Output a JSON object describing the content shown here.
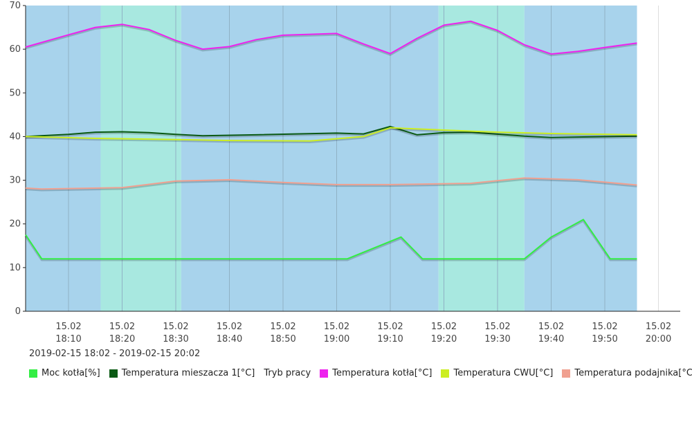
{
  "chart_data": {
    "type": "line",
    "date_range": "2019-02-15 18:02 - 2019-02-15 20:02",
    "ylim": [
      0,
      70
    ],
    "y_ticks": [
      0,
      10,
      20,
      30,
      40,
      50,
      60,
      70
    ],
    "x_range": [
      "18:02",
      "20:02"
    ],
    "x_ticks": [
      {
        "date": "15.02",
        "time": "18:10"
      },
      {
        "date": "15.02",
        "time": "18:20"
      },
      {
        "date": "15.02",
        "time": "18:30"
      },
      {
        "date": "15.02",
        "time": "18:40"
      },
      {
        "date": "15.02",
        "time": "18:50"
      },
      {
        "date": "15.02",
        "time": "19:00"
      },
      {
        "date": "15.02",
        "time": "19:10"
      },
      {
        "date": "15.02",
        "time": "19:20"
      },
      {
        "date": "15.02",
        "time": "19:30"
      },
      {
        "date": "15.02",
        "time": "19:40"
      },
      {
        "date": "15.02",
        "time": "19:50"
      },
      {
        "date": "15.02",
        "time": "20:00"
      }
    ],
    "work_mode_bands": [
      {
        "start": "18:02",
        "end": "18:16",
        "color": "#a8d3ec"
      },
      {
        "start": "18:16",
        "end": "18:31",
        "color": "#a8e8e0"
      },
      {
        "start": "18:31",
        "end": "19:19",
        "color": "#a8d3ec"
      },
      {
        "start": "19:19",
        "end": "19:35",
        "color": "#a8e8e0"
      },
      {
        "start": "19:35",
        "end": "19:56",
        "color": "#a8d3ec"
      }
    ],
    "series": [
      {
        "name": "Moc kotła[%]",
        "color": "#33ee44",
        "points": [
          [
            "18:02",
            17.5
          ],
          [
            "18:05",
            12
          ],
          [
            "19:02",
            12
          ],
          [
            "19:12",
            17
          ],
          [
            "19:16",
            12
          ],
          [
            "19:35",
            12
          ],
          [
            "19:40",
            17
          ],
          [
            "19:46",
            21
          ],
          [
            "19:51",
            12
          ],
          [
            "19:56",
            12
          ]
        ]
      },
      {
        "name": "Temperatura mieszacza 1[°C]",
        "color": "#0b5a14",
        "points": [
          [
            "18:02",
            40
          ],
          [
            "18:10",
            40.5
          ],
          [
            "18:15",
            41
          ],
          [
            "18:20",
            41.1
          ],
          [
            "18:25",
            40.9
          ],
          [
            "18:30",
            40.5
          ],
          [
            "18:35",
            40.2
          ],
          [
            "18:45",
            40.4
          ],
          [
            "19:00",
            40.8
          ],
          [
            "19:05",
            40.6
          ],
          [
            "19:10",
            42.3
          ],
          [
            "19:15",
            40.4
          ],
          [
            "19:20",
            40.9
          ],
          [
            "19:25",
            41
          ],
          [
            "19:35",
            40.1
          ],
          [
            "19:40",
            39.8
          ],
          [
            "19:56",
            40.1
          ]
        ]
      },
      {
        "name": "Tryb pracy",
        "color": "",
        "points": []
      },
      {
        "name": "Temperatura kotła[°C]",
        "color": "#ee22ee",
        "points": [
          [
            "18:02",
            60.5
          ],
          [
            "18:10",
            63.3
          ],
          [
            "18:15",
            65
          ],
          [
            "18:20",
            65.7
          ],
          [
            "18:25",
            64.5
          ],
          [
            "18:30",
            62
          ],
          [
            "18:35",
            60
          ],
          [
            "18:40",
            60.6
          ],
          [
            "18:45",
            62.2
          ],
          [
            "18:50",
            63.2
          ],
          [
            "19:00",
            63.6
          ],
          [
            "19:05",
            61.2
          ],
          [
            "19:10",
            59
          ],
          [
            "19:15",
            62.5
          ],
          [
            "19:20",
            65.5
          ],
          [
            "19:25",
            66.4
          ],
          [
            "19:30",
            64.3
          ],
          [
            "19:35",
            61
          ],
          [
            "19:40",
            58.9
          ],
          [
            "19:45",
            59.5
          ],
          [
            "19:50",
            60.4
          ],
          [
            "19:56",
            61.4
          ]
        ]
      },
      {
        "name": "Temperatura CWU[°C]",
        "color": "#ccee22",
        "points": [
          [
            "18:02",
            40
          ],
          [
            "18:15",
            39.6
          ],
          [
            "18:30",
            39.3
          ],
          [
            "18:40",
            39.1
          ],
          [
            "18:55",
            39
          ],
          [
            "19:05",
            40
          ],
          [
            "19:10",
            42
          ],
          [
            "19:20",
            41.5
          ],
          [
            "19:30",
            41
          ],
          [
            "19:40",
            40.7
          ],
          [
            "19:56",
            40.4
          ]
        ]
      },
      {
        "name": "Temperatura podajnika[°C]",
        "color": "#f0a090",
        "points": [
          [
            "18:02",
            28.2
          ],
          [
            "18:05",
            28
          ],
          [
            "18:20",
            28.3
          ],
          [
            "18:30",
            29.8
          ],
          [
            "18:40",
            30.1
          ],
          [
            "18:50",
            29.5
          ],
          [
            "19:00",
            29
          ],
          [
            "19:10",
            29
          ],
          [
            "19:25",
            29.3
          ],
          [
            "19:35",
            30.5
          ],
          [
            "19:45",
            30.1
          ],
          [
            "19:56",
            28.9
          ]
        ]
      }
    ]
  }
}
